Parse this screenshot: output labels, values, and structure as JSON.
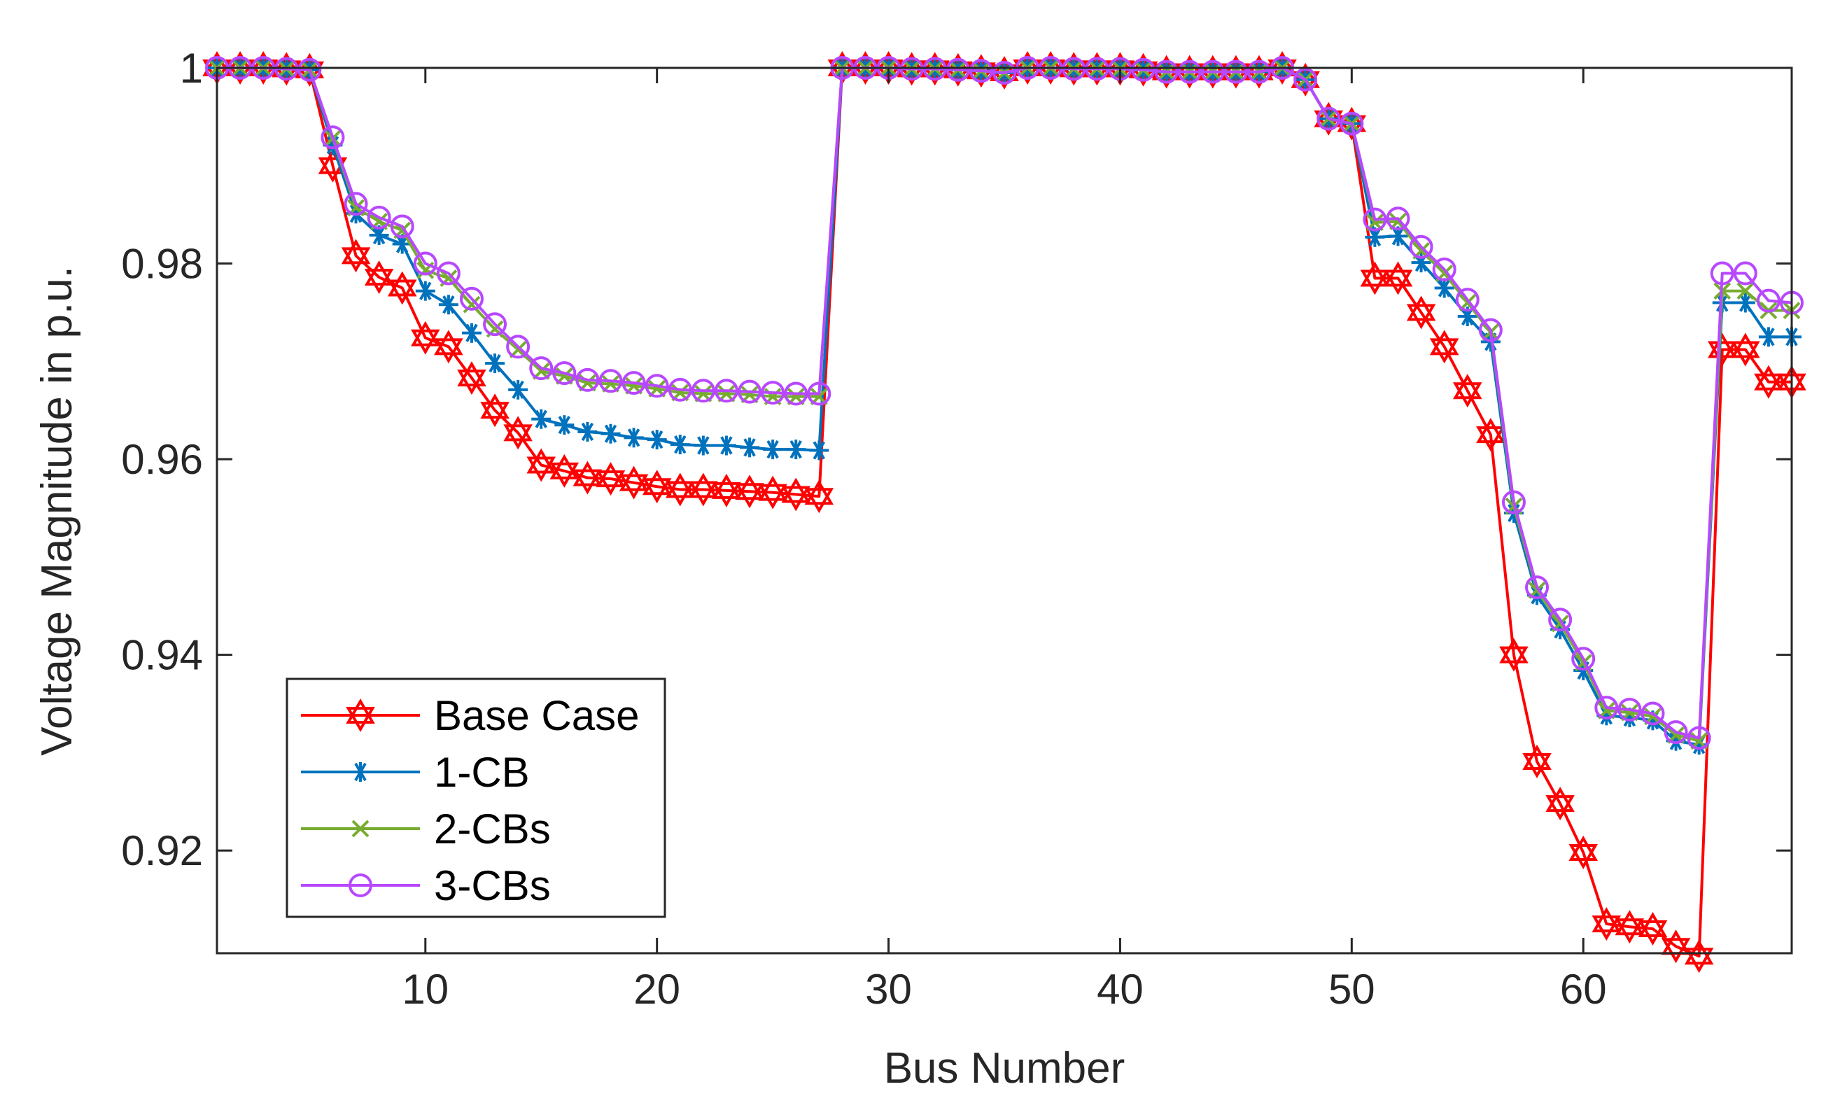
{
  "chart_data": {
    "type": "line",
    "title": "",
    "xlabel": "Bus Number",
    "ylabel": "Voltage Magnitude in p.u.",
    "xlim": [
      1,
      69
    ],
    "ylim": [
      0.9095,
      1.0
    ],
    "xticks": [
      10,
      20,
      30,
      40,
      50,
      60
    ],
    "yticks": [
      0.92,
      0.94,
      0.96,
      0.98,
      1
    ],
    "xtick_labels": [
      "10",
      "20",
      "30",
      "40",
      "50",
      "60"
    ],
    "ytick_labels": [
      "0.92",
      "0.94",
      "0.96",
      "0.98",
      "1"
    ],
    "legend_position": "bottom-left",
    "series": [
      {
        "name": "Base Case",
        "color": "#ff0000",
        "marker": "hexagram",
        "values": [
          1.0,
          1.0,
          1.0,
          0.9999,
          0.9998,
          0.99,
          0.9808,
          0.9786,
          0.9775,
          0.9724,
          0.9715,
          0.9683,
          0.965,
          0.9627,
          0.9594,
          0.9588,
          0.9581,
          0.958,
          0.9576,
          0.9572,
          0.9569,
          0.9569,
          0.9568,
          0.9567,
          0.9566,
          0.9564,
          0.9562,
          1.0,
          1.0,
          1.0,
          0.9999,
          0.9999,
          0.9998,
          0.9997,
          0.9995,
          1.0,
          1.0,
          0.9999,
          0.9999,
          0.9999,
          0.9998,
          0.9996,
          0.9996,
          0.9996,
          0.9996,
          0.9996,
          1.0,
          0.9988,
          0.9948,
          0.9943,
          0.9785,
          0.9785,
          0.975,
          0.9715,
          0.967,
          0.9625,
          0.94,
          0.9291,
          0.9248,
          0.9198,
          0.9125,
          0.9122,
          0.912,
          0.9102,
          0.9092,
          0.9712,
          0.9712,
          0.9679,
          0.9679
        ]
      },
      {
        "name": "1-CB",
        "color": "#0072bd",
        "marker": "asterisk",
        "values": [
          1.0,
          1.0,
          1.0,
          0.9999,
          0.9998,
          0.9921,
          0.9851,
          0.9829,
          0.982,
          0.9772,
          0.9758,
          0.9729,
          0.9698,
          0.9671,
          0.9641,
          0.9635,
          0.9628,
          0.9626,
          0.9622,
          0.962,
          0.9615,
          0.9614,
          0.9614,
          0.9612,
          0.961,
          0.961,
          0.9609,
          1.0,
          1.0,
          1.0,
          0.9999,
          0.9999,
          0.9998,
          0.9997,
          0.9995,
          1.0,
          1.0,
          0.9999,
          0.9999,
          0.9999,
          0.9998,
          0.9996,
          0.9996,
          0.9996,
          0.9996,
          0.9996,
          1.0,
          0.9988,
          0.9948,
          0.9943,
          0.9827,
          0.9828,
          0.9801,
          0.9775,
          0.9746,
          0.972,
          0.9545,
          0.9461,
          0.9426,
          0.9384,
          0.9338,
          0.9336,
          0.9333,
          0.9312,
          0.9308,
          0.976,
          0.976,
          0.9725,
          0.9725
        ]
      },
      {
        "name": "2-CBs",
        "color": "#77ac30",
        "marker": "x",
        "values": [
          1.0,
          1.0,
          1.0,
          0.9999,
          0.9998,
          0.9928,
          0.9857,
          0.9843,
          0.9834,
          0.9793,
          0.9785,
          0.9758,
          0.9733,
          0.9712,
          0.969,
          0.9685,
          0.9678,
          0.9677,
          0.9675,
          0.9672,
          0.9668,
          0.9667,
          0.9667,
          0.9666,
          0.9664,
          0.9664,
          0.9664,
          1.0,
          1.0,
          1.0,
          0.9999,
          0.9999,
          0.9998,
          0.9997,
          0.9995,
          1.0,
          1.0,
          0.9999,
          0.9999,
          0.9999,
          0.9998,
          0.9996,
          0.9996,
          0.9996,
          0.9996,
          0.9996,
          1.0,
          0.9988,
          0.9948,
          0.9943,
          0.9842,
          0.9843,
          0.9813,
          0.979,
          0.976,
          0.973,
          0.9552,
          0.9466,
          0.9432,
          0.9392,
          0.9343,
          0.9341,
          0.9337,
          0.9318,
          0.9312,
          0.9772,
          0.9772,
          0.9752,
          0.9752
        ]
      },
      {
        "name": "3-CBs",
        "color": "#b848ff",
        "marker": "circle",
        "values": [
          1.0,
          1.0,
          1.0,
          0.9999,
          0.9998,
          0.9929,
          0.9861,
          0.9847,
          0.9838,
          0.98,
          0.979,
          0.9764,
          0.9738,
          0.9715,
          0.9693,
          0.9688,
          0.9681,
          0.968,
          0.9678,
          0.9675,
          0.9671,
          0.967,
          0.967,
          0.9669,
          0.9668,
          0.9667,
          0.9667,
          1.0,
          1.0,
          1.0,
          0.9999,
          0.9999,
          0.9998,
          0.9997,
          0.9995,
          1.0,
          1.0,
          0.9999,
          0.9999,
          0.9999,
          0.9998,
          0.9996,
          0.9996,
          0.9996,
          0.9996,
          0.9996,
          1.0,
          0.9988,
          0.9948,
          0.9943,
          0.9845,
          0.9846,
          0.9817,
          0.9794,
          0.9763,
          0.9732,
          0.9556,
          0.9469,
          0.9436,
          0.9396,
          0.9346,
          0.9344,
          0.934,
          0.9321,
          0.9315,
          0.979,
          0.979,
          0.9762,
          0.976
        ]
      }
    ]
  }
}
